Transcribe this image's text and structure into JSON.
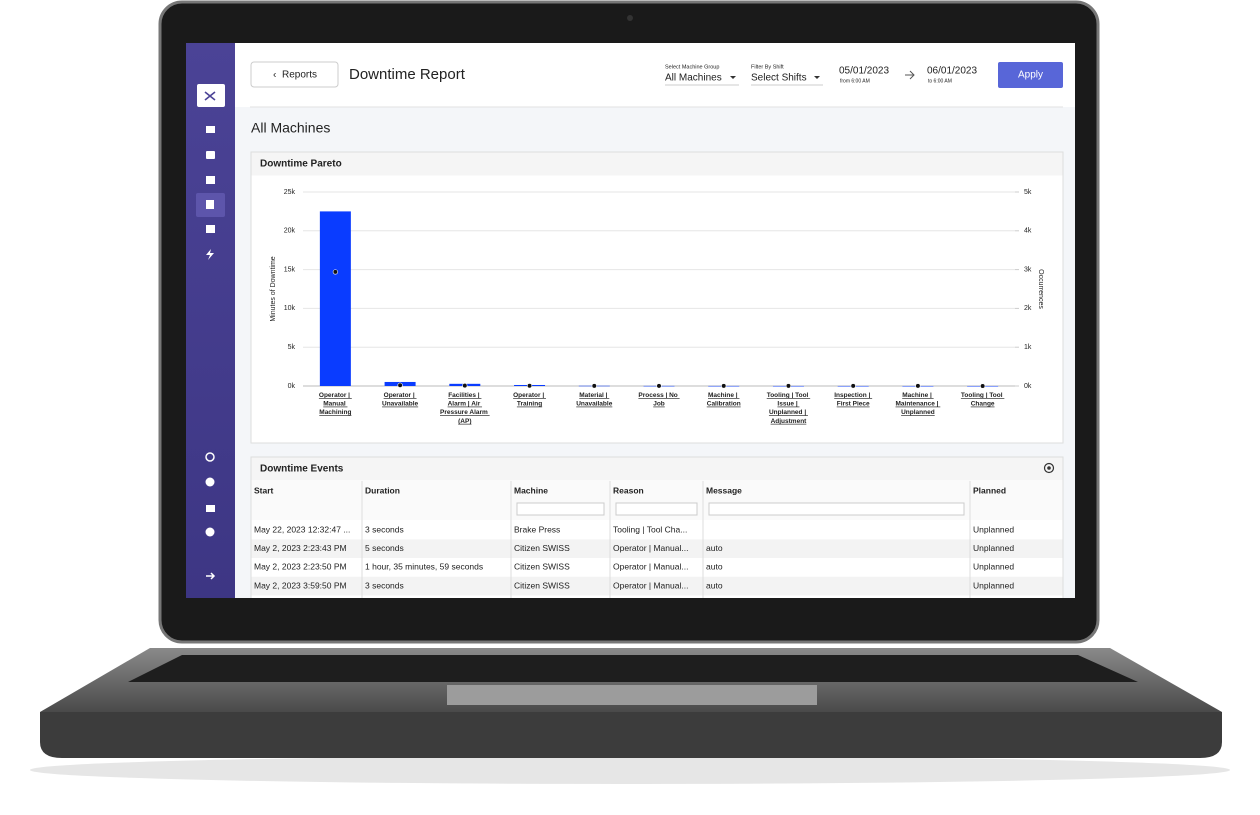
{
  "header": {
    "back_button": "Reports",
    "title": "Downtime Report",
    "machine_group_label": "Select Machine Group",
    "machine_group": "All Machines",
    "shift_label": "Filter By Shift",
    "shift": "Select Shifts",
    "start_date": "05/01/2023",
    "start_time": "from 6:00 AM",
    "end_date": "06/01/2023",
    "end_time": "to 6:00 AM",
    "apply": "Apply"
  },
  "section_title": "All Machines",
  "chart_data": {
    "type": "bar",
    "title": "Downtime Pareto",
    "y_label": "Minutes of Downtime",
    "y2_label": "Occurrences",
    "categories": [
      "Operator | Manual Machining",
      "Operator | Unavailable",
      "Facilities | Alarm | Air Pressure Alarm (AP)",
      "Operator | Training",
      "Material | Unavailable",
      "Process | No Job",
      "Machine | Calibration",
      "Tooling | Tool Issue | Unplanned | Adjustment",
      "Inspection | First Piece",
      "Machine | Maintenance | Unplanned",
      "Tooling | Tool Change"
    ],
    "series": [
      {
        "type": "bar",
        "color": "#0a3cff",
        "values": [
          22500,
          520,
          280,
          130,
          30,
          15,
          10,
          8,
          6,
          5,
          4
        ]
      },
      {
        "type": "scatter",
        "axis": "y2",
        "color": "#111111",
        "values": [
          2940,
          20,
          10,
          6,
          4,
          3,
          3,
          2,
          2,
          2,
          1
        ]
      }
    ],
    "ylim": [
      0,
      25000
    ],
    "yticks": [
      {
        "value": 0,
        "label": "0k"
      },
      {
        "value": 5000,
        "label": "5k"
      },
      {
        "value": 10000,
        "label": "10k"
      },
      {
        "value": 15000,
        "label": "15k"
      },
      {
        "value": 20000,
        "label": "20k"
      },
      {
        "value": 25000,
        "label": "25k"
      }
    ],
    "y2lim": [
      0,
      5000
    ],
    "y2ticks": [
      {
        "value": 0,
        "label": "0k"
      },
      {
        "value": 1000,
        "label": "1k"
      },
      {
        "value": 2000,
        "label": "2k"
      },
      {
        "value": 3000,
        "label": "3k"
      },
      {
        "value": 4000,
        "label": "4k"
      },
      {
        "value": 5000,
        "label": "5k"
      }
    ],
    "grid": true
  },
  "events": {
    "title": "Downtime Events",
    "columns": [
      "Start",
      "Duration",
      "Machine",
      "Reason",
      "Message",
      "Planned"
    ],
    "rows": [
      [
        "May 22, 2023 12:32:47 ...",
        "3 seconds",
        "Brake Press",
        "Tooling | Tool Cha...",
        "",
        "Unplanned"
      ],
      [
        "May 2, 2023 2:23:43 PM",
        "5 seconds",
        "Citizen SWISS",
        "Operator | Manual...",
        "auto",
        "Unplanned"
      ],
      [
        "May 2, 2023 2:23:50 PM",
        "1 hour, 35 minutes, 59 seconds",
        "Citizen SWISS",
        "Operator | Manual...",
        "auto",
        "Unplanned"
      ],
      [
        "May 2, 2023 3:59:50 PM",
        "3 seconds",
        "Citizen SWISS",
        "Operator | Manual...",
        "auto",
        "Unplanned"
      ]
    ]
  }
}
